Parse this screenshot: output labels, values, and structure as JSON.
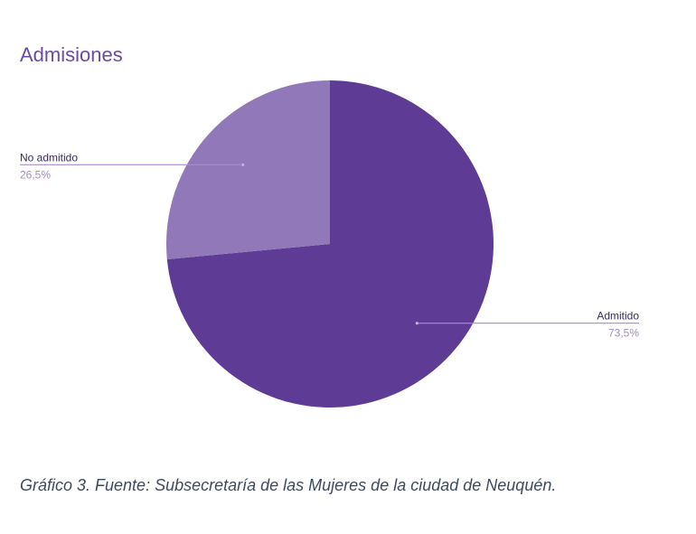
{
  "chart_data": {
    "type": "pie",
    "title": "Admisiones",
    "slices": [
      {
        "label": "Admitido",
        "value": 73.5,
        "value_label": "73,5%",
        "color": "#5e3c96"
      },
      {
        "label": "No admitido",
        "value": 26.5,
        "value_label": "26,5%",
        "color": "#9178b8"
      }
    ],
    "start_angle": "12 o'clock",
    "direction": "clockwise"
  },
  "caption": "Gráfico 3. Fuente: Subsecretaría de las Mujeres  de la ciudad de Neuquén."
}
